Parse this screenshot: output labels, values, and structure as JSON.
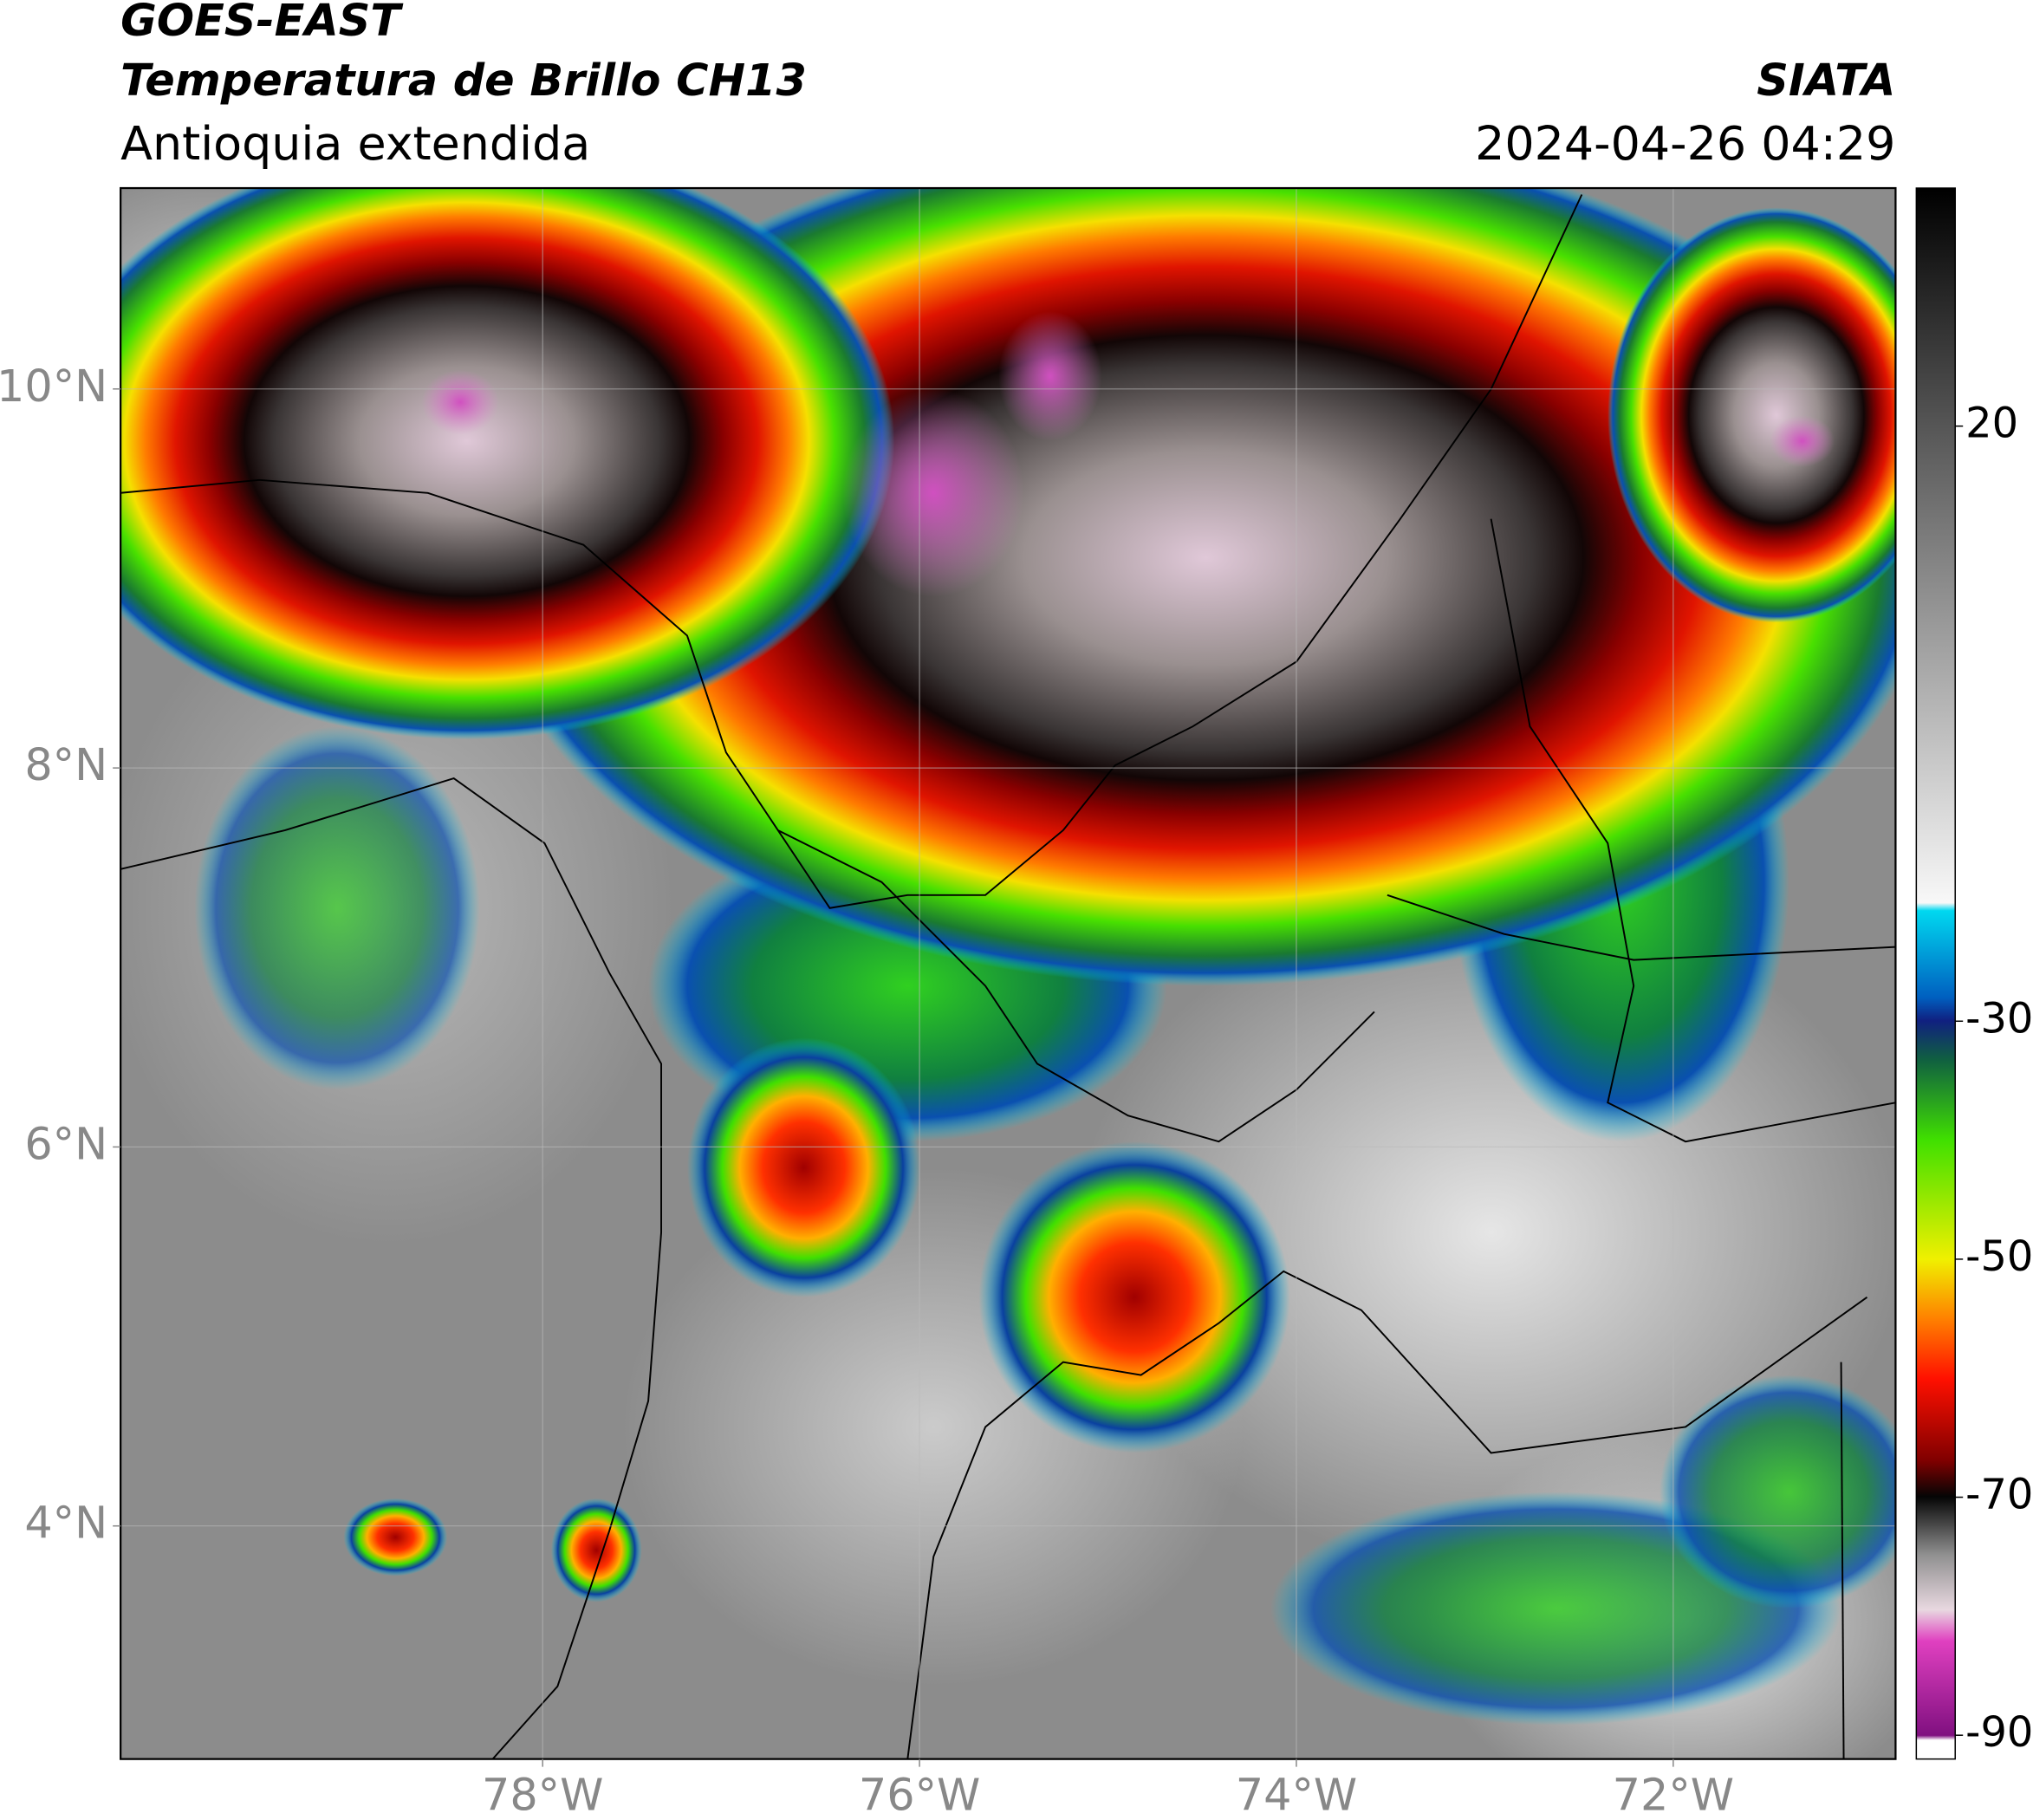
{
  "header": {
    "title": "GOES-EAST",
    "subtitle": "Temperatura de Brillo CH13",
    "region": "Antioquia extendida",
    "source": "SIATA",
    "datetime": "2024-04-26 04:29"
  },
  "map": {
    "xlim": [
      -80.24,
      -70.82
    ],
    "ylim": [
      2.77,
      11.06
    ],
    "xticks": [
      {
        "value": -78,
        "label": "78°W"
      },
      {
        "value": -76,
        "label": "76°W"
      },
      {
        "value": -74,
        "label": "74°W"
      },
      {
        "value": -72,
        "label": "72°W"
      }
    ],
    "yticks": [
      {
        "value": 4,
        "label": "4°N"
      },
      {
        "value": 6,
        "label": "6°N"
      },
      {
        "value": 8,
        "label": "8°N"
      },
      {
        "value": 10,
        "label": "10°N"
      }
    ],
    "grid": true
  },
  "colorbar": {
    "lim": [
      -92,
      40
    ],
    "ticks": [
      20,
      -30,
      -50,
      -70,
      -90
    ]
  }
}
